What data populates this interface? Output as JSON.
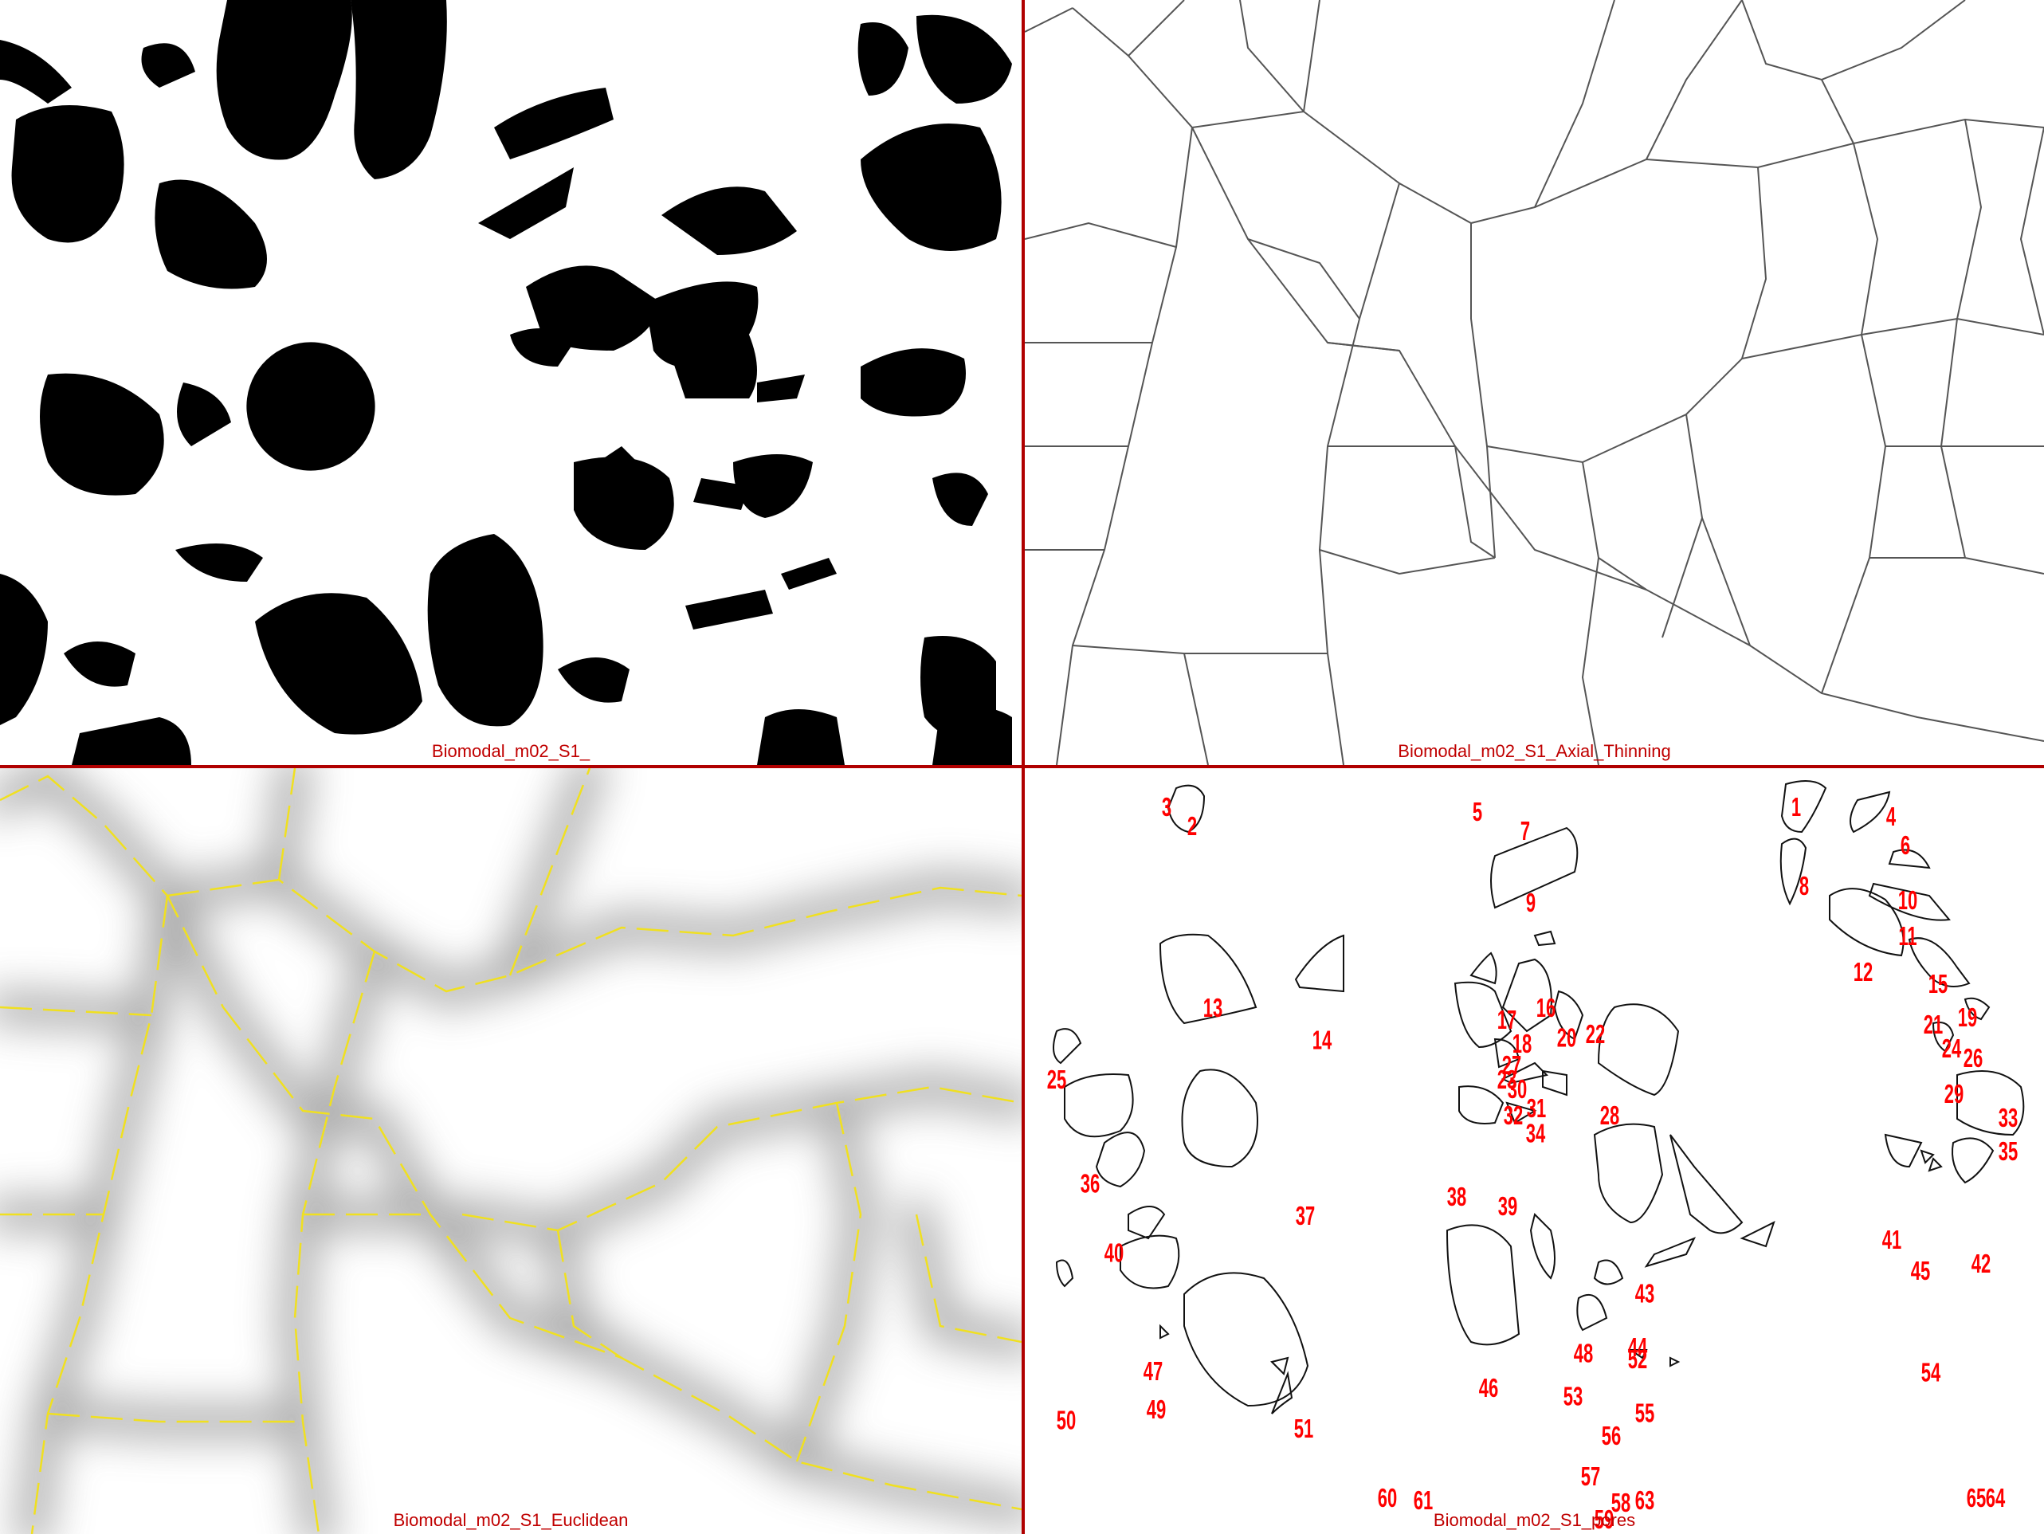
{
  "colors": {
    "divider": "#b00000",
    "caption": "#c00000",
    "pore_fill": "#000000",
    "skeleton": "#555555",
    "euclid_skeleton": "#f0e020",
    "pore_label": "#ff0000"
  },
  "panels": {
    "binary": {
      "caption": "Biomodal_m02_S1_"
    },
    "thinning": {
      "caption": "Biomodal_m02_S1_Axial_Thinning"
    },
    "euclidean": {
      "caption": "Biomodal_m02_S1_Euclidean"
    },
    "pores": {
      "caption": "Biomodal_m02_S1_pores"
    }
  },
  "pore_labels": [
    "1",
    "2",
    "3",
    "4",
    "5",
    "6",
    "7",
    "8",
    "9",
    "10",
    "11",
    "12",
    "13",
    "14",
    "15",
    "16",
    "17",
    "18",
    "19",
    "20",
    "21",
    "22",
    "23",
    "24",
    "25",
    "26",
    "27",
    "28",
    "29",
    "30",
    "31",
    "32",
    "33",
    "34",
    "35",
    "36",
    "37",
    "38",
    "39",
    "40",
    "41",
    "42",
    "43",
    "44",
    "45",
    "46",
    "47",
    "48",
    "49",
    "50",
    "51",
    "52",
    "53",
    "54",
    "55",
    "56",
    "57",
    "58",
    "59",
    "60",
    "61",
    "63",
    "64",
    "65"
  ]
}
